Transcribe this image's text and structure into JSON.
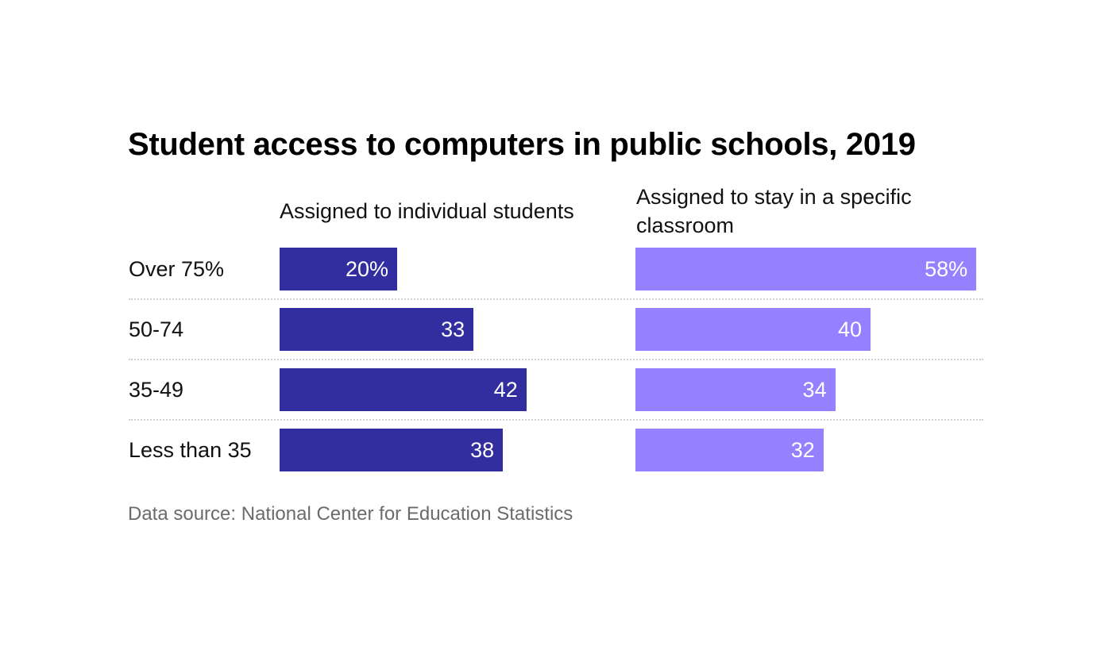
{
  "chart_data": {
    "type": "bar",
    "orientation": "horizontal",
    "layout": "small-multiples",
    "title": "Student access to computers in public schools, 2019",
    "categories": [
      "Over 75%",
      "50-74",
      "35-49",
      "Less than 35"
    ],
    "series": [
      {
        "name": "Assigned to individual students",
        "values": [
          20,
          33,
          42,
          38
        ],
        "labels": [
          "20%",
          "33",
          "42",
          "38"
        ],
        "color": "#332ea0"
      },
      {
        "name": "Assigned to stay in a specific classroom",
        "values": [
          58,
          40,
          34,
          32
        ],
        "labels": [
          "58%",
          "40",
          "34",
          "32"
        ],
        "color": "#9580ff"
      }
    ],
    "unit": "%",
    "xlim": [
      0,
      60
    ],
    "grid": false,
    "source": "Data source: National Center for Education Statistics"
  }
}
